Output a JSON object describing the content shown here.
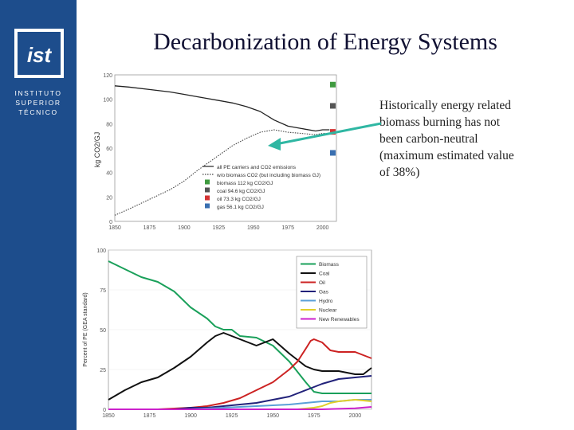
{
  "slide": {
    "title": "Decarbonization of Energy Systems",
    "note": [
      "Historically energy related",
      "biomass burning has not",
      "been carbon-neutral",
      "(maximum estimated value",
      "of 38%)"
    ]
  },
  "logo": {
    "mark": "ist",
    "lines": [
      "INSTITUTO",
      "SUPERIOR",
      "TÉCNICO"
    ]
  },
  "colors": {
    "sidebar": "#1d4d8c",
    "arrow": "#2fb7a3"
  },
  "chart_data": [
    {
      "type": "line",
      "ylabel": "kg CO2/GJ",
      "ylim": [
        0,
        120
      ],
      "xlim": [
        1850,
        2010
      ],
      "xticks": [
        1850,
        1875,
        1900,
        1925,
        1950,
        1975,
        2000
      ],
      "yticks": [
        0,
        20,
        40,
        60,
        80,
        100,
        120
      ],
      "legend": [
        "all PE carriers and CO2 emissions",
        "w/o biomass CO2 (but including biomass GJ)",
        "biomass 112 kg CO2/GJ",
        "coal 94.6 kg CO2/GJ",
        "oil 73.3 kg CO2/GJ",
        "gas 56.1 kg CO2/GJ"
      ],
      "series": [
        {
          "name": "all PE carriers and CO2 emissions",
          "style": "solid",
          "color": "#222222",
          "x": [
            1850,
            1860,
            1875,
            1890,
            1900,
            1910,
            1925,
            1935,
            1945,
            1955,
            1965,
            1975,
            1985,
            1995,
            2000,
            2005
          ],
          "y": [
            111,
            110,
            108,
            106,
            104,
            102,
            99,
            97,
            94,
            90,
            83,
            78,
            76,
            74,
            75,
            75
          ]
        },
        {
          "name": "w/o biomass CO2 (but including biomass GJ)",
          "style": "dotted",
          "color": "#444444",
          "x": [
            1850,
            1860,
            1875,
            1890,
            1900,
            1910,
            1925,
            1935,
            1945,
            1955,
            1965,
            1975,
            1985,
            1995,
            2000,
            2005
          ],
          "y": [
            5,
            10,
            18,
            26,
            33,
            42,
            54,
            62,
            68,
            73,
            75,
            73,
            72,
            71,
            72,
            72
          ]
        }
      ],
      "markers": [
        {
          "name": "biomass 112 kg CO2/GJ",
          "value": 112,
          "color": "#3f9a3f"
        },
        {
          "name": "coal 94.6 kg CO2/GJ",
          "value": 94.6,
          "color": "#555555"
        },
        {
          "name": "oil 73.3 kg CO2/GJ",
          "value": 73.3,
          "color": "#d43333"
        },
        {
          "name": "gas 56.1 kg CO2/GJ",
          "value": 56.1,
          "color": "#3a6fb0"
        }
      ]
    },
    {
      "type": "line",
      "ylabel": "Percent of PE (GEA standard)",
      "ylim": [
        0,
        100
      ],
      "xlim": [
        1850,
        2010
      ],
      "xticks": [
        1850,
        1875,
        1900,
        1925,
        1950,
        1975,
        2000
      ],
      "yticks": [
        0,
        25,
        50,
        75,
        100
      ],
      "series": [
        {
          "name": "Biomass",
          "color": "#1aa05a",
          "x": [
            1850,
            1860,
            1870,
            1880,
            1890,
            1900,
            1910,
            1915,
            1920,
            1925,
            1930,
            1940,
            1950,
            1960,
            1970,
            1975,
            1980,
            1990,
            2000,
            2010
          ],
          "y": [
            93,
            88,
            83,
            80,
            74,
            64,
            57,
            52,
            50,
            50,
            46,
            45,
            40,
            30,
            17,
            11,
            10,
            10,
            10,
            10
          ]
        },
        {
          "name": "Coal",
          "color": "#111111",
          "x": [
            1850,
            1860,
            1870,
            1880,
            1890,
            1900,
            1910,
            1915,
            1920,
            1925,
            1930,
            1940,
            1950,
            1960,
            1965,
            1970,
            1975,
            1980,
            1990,
            2000,
            2005,
            2010
          ],
          "y": [
            6,
            12,
            17,
            20,
            26,
            33,
            42,
            46,
            48,
            46,
            44,
            40,
            44,
            35,
            31,
            27,
            25,
            24,
            24,
            22,
            22,
            26
          ]
        },
        {
          "name": "Oil",
          "color": "#cc2222",
          "x": [
            1850,
            1880,
            1900,
            1910,
            1920,
            1930,
            1940,
            1950,
            1960,
            1965,
            1970,
            1973,
            1975,
            1980,
            1985,
            1990,
            2000,
            2010
          ],
          "y": [
            0,
            0,
            1,
            2,
            4,
            7,
            12,
            17,
            25,
            30,
            38,
            43,
            44,
            42,
            37,
            36,
            36,
            32
          ]
        },
        {
          "name": "Gas",
          "color": "#22227a",
          "x": [
            1850,
            1890,
            1900,
            1910,
            1920,
            1930,
            1940,
            1950,
            1960,
            1970,
            1980,
            1990,
            2000,
            2010
          ],
          "y": [
            0,
            0,
            1,
            1,
            2,
            3,
            4,
            6,
            8,
            12,
            16,
            19,
            20,
            21
          ]
        },
        {
          "name": "Hydro",
          "color": "#5aa0d8",
          "x": [
            1850,
            1900,
            1910,
            1920,
            1930,
            1940,
            1950,
            1960,
            1970,
            1980,
            1990,
            2000,
            2010
          ],
          "y": [
            0,
            0,
            0.5,
            1,
            1.5,
            2,
            2.5,
            3,
            4,
            5,
            5,
            6,
            6
          ]
        },
        {
          "name": "Nuclear",
          "color": "#e0cf2a",
          "x": [
            1850,
            1960,
            1965,
            1970,
            1975,
            1980,
            1985,
            1990,
            2000,
            2010
          ],
          "y": [
            0,
            0,
            0,
            0.5,
            1,
            2,
            4,
            5,
            6,
            5
          ]
        },
        {
          "name": "New Renewables",
          "color": "#cc22cc",
          "x": [
            1850,
            1980,
            1990,
            2000,
            2010
          ],
          "y": [
            0,
            0,
            0.3,
            0.6,
            1.5
          ]
        }
      ]
    }
  ]
}
